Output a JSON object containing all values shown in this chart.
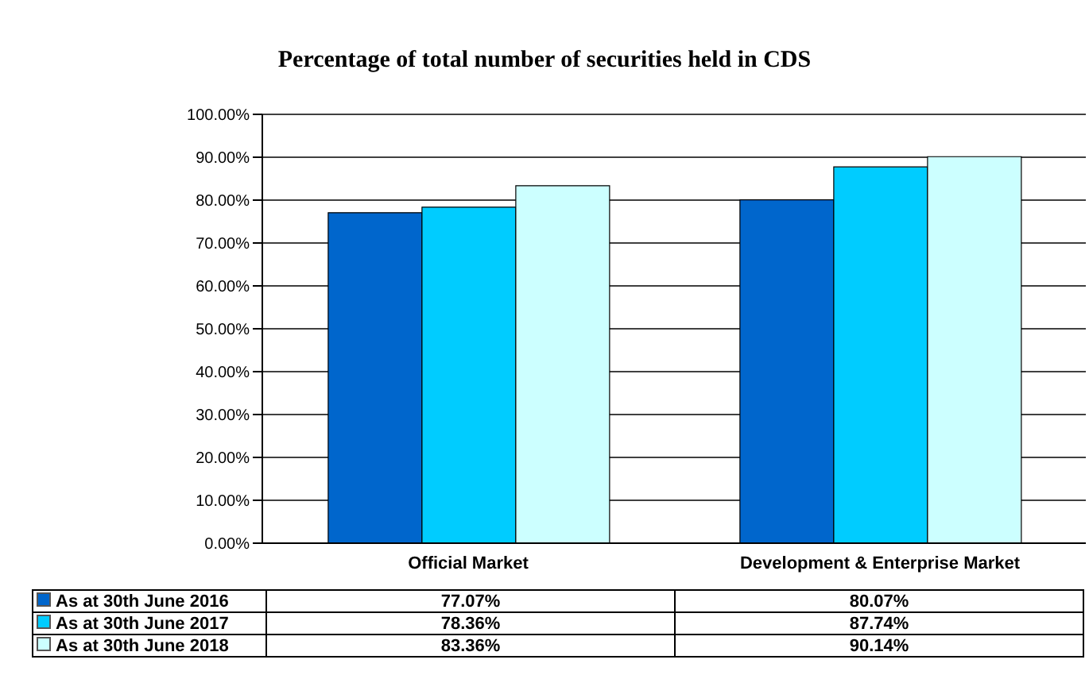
{
  "chart_data": {
    "type": "bar",
    "title": "Percentage of  total number of securities held in CDS",
    "categories": [
      "Official Market",
      "Development & Enterprise Market"
    ],
    "series": [
      {
        "name": "As at 30th June 2016",
        "color": "#0066cc",
        "values": [
          77.07,
          80.07
        ],
        "value_labels": [
          "77.07%",
          "80.07%"
        ]
      },
      {
        "name": "As at 30th June 2017",
        "color": "#00ccff",
        "values": [
          78.36,
          87.74
        ],
        "value_labels": [
          "78.36%",
          "87.74%"
        ]
      },
      {
        "name": "As at 30th June 2018",
        "color": "#ccffff",
        "values": [
          83.36,
          90.14
        ],
        "value_labels": [
          "83.36%",
          "90.14%"
        ]
      }
    ],
    "ylim": [
      0,
      100
    ],
    "yticks": [
      {
        "value": 0,
        "label": "0.00%"
      },
      {
        "value": 10,
        "label": "10.00%"
      },
      {
        "value": 20,
        "label": "20.00%"
      },
      {
        "value": 30,
        "label": "30.00%"
      },
      {
        "value": 40,
        "label": "40.00%"
      },
      {
        "value": 50,
        "label": "50.00%"
      },
      {
        "value": 60,
        "label": "60.00%"
      },
      {
        "value": 70,
        "label": "70.00%"
      },
      {
        "value": 80,
        "label": "80.00%"
      },
      {
        "value": 90,
        "label": "90.00%"
      },
      {
        "value": 100,
        "label": "100.00%"
      }
    ],
    "grid": "y",
    "legend": "bottom"
  }
}
